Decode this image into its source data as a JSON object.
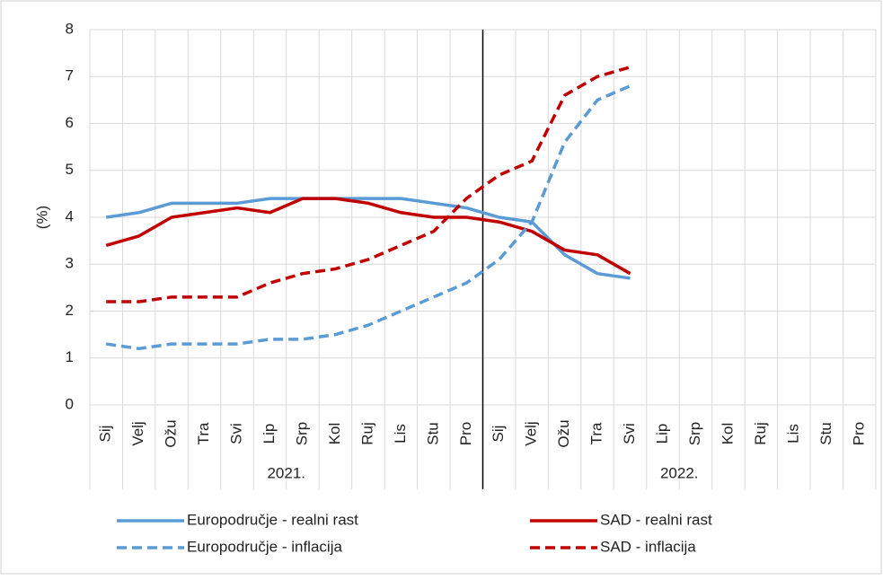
{
  "chart_data": {
    "type": "line",
    "ylabel": "(%)",
    "categories": [
      "Sij",
      "Velj",
      "Ožu",
      "Tra",
      "Svi",
      "Lip",
      "Srp",
      "Kol",
      "Ruj",
      "Lis",
      "Stu",
      "Pro",
      "Sij",
      "Velj",
      "Ožu",
      "Tra",
      "Svi",
      "Lip",
      "Srp",
      "Kol",
      "Ruj",
      "Lis",
      "Stu",
      "Pro"
    ],
    "x_groups": [
      "2021.",
      "2022."
    ],
    "ylim": [
      0,
      8
    ],
    "yticks": [
      0,
      1,
      2,
      3,
      4,
      5,
      6,
      7,
      8
    ],
    "grid": true,
    "legend": "bottom",
    "series": [
      {
        "name": "Europodručje - realni rast",
        "color": "#5b9bd5",
        "dashed": false,
        "values": [
          4.0,
          4.1,
          4.3,
          4.3,
          4.3,
          4.4,
          4.4,
          4.4,
          4.4,
          4.4,
          4.3,
          4.2,
          4.0,
          3.9,
          3.2,
          2.8,
          2.7,
          null,
          null,
          null,
          null,
          null,
          null,
          null
        ]
      },
      {
        "name": "SAD - realni rast",
        "color": "#c00000",
        "dashed": false,
        "values": [
          3.4,
          3.6,
          4.0,
          4.1,
          4.2,
          4.1,
          4.4,
          4.4,
          4.3,
          4.1,
          4.0,
          4.0,
          3.9,
          3.7,
          3.3,
          3.2,
          2.8,
          null,
          null,
          null,
          null,
          null,
          null,
          null
        ]
      },
      {
        "name": "Europodručje - inflacija",
        "color": "#5b9bd5",
        "dashed": true,
        "values": [
          1.3,
          1.2,
          1.3,
          1.3,
          1.3,
          1.4,
          1.4,
          1.5,
          1.7,
          2.0,
          2.3,
          2.6,
          3.1,
          3.9,
          5.6,
          6.5,
          6.8,
          null,
          null,
          null,
          null,
          null,
          null,
          null
        ]
      },
      {
        "name": "SAD - inflacija",
        "color": "#c00000",
        "dashed": true,
        "values": [
          2.2,
          2.2,
          2.3,
          2.3,
          2.3,
          2.6,
          2.8,
          2.9,
          3.1,
          3.4,
          3.7,
          4.4,
          4.9,
          5.2,
          6.6,
          7.0,
          7.2,
          null,
          null,
          null,
          null,
          null,
          null,
          null
        ]
      }
    ]
  }
}
